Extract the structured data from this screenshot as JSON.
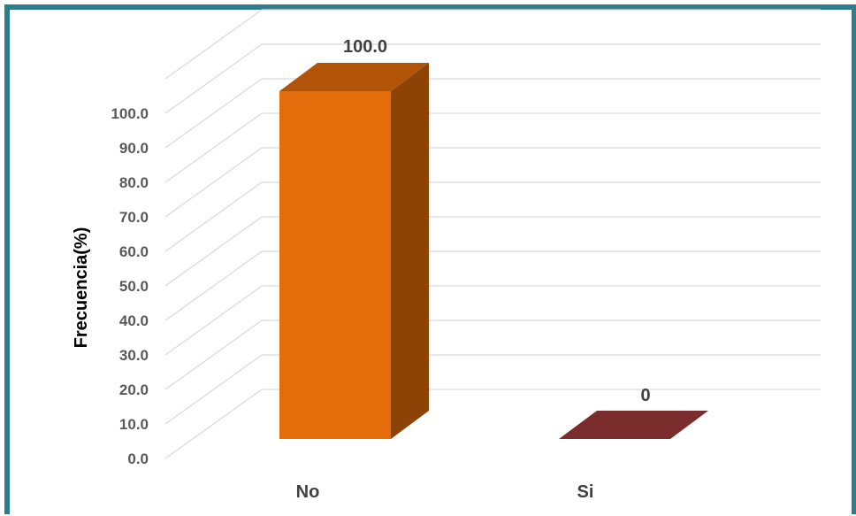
{
  "chart_data": {
    "type": "bar",
    "title": "",
    "xlabel": "",
    "ylabel": "Frecuencia(%)",
    "categories": [
      "No",
      "Si"
    ],
    "series": [
      {
        "values": [
          100.0,
          0
        ]
      }
    ],
    "data_labels": [
      "100.0",
      "0"
    ],
    "y_ticks": [
      "0.0",
      "10.0",
      "20.0",
      "30.0",
      "40.0",
      "50.0",
      "60.0",
      "70.0",
      "80.0",
      "90.0",
      "100.0"
    ],
    "ylim": [
      0,
      100
    ],
    "grid": true,
    "legend": "none",
    "three_d": true,
    "colors": {
      "bars": [
        "#E46C0A",
        "#7B2C2C"
      ],
      "grid": "#D9D9D9",
      "frame": "#2E7D8C"
    }
  }
}
